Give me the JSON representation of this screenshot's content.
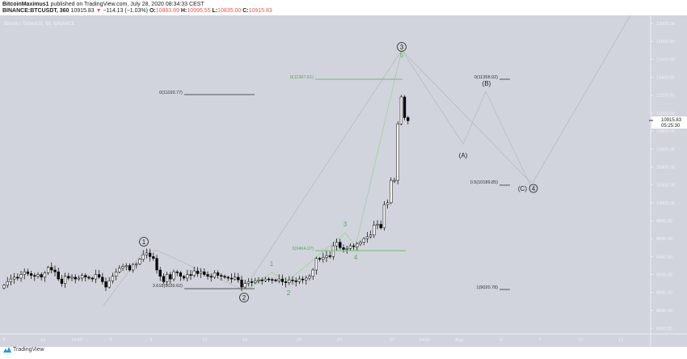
{
  "header": {
    "publisher": "BitcoinMaximus1",
    "published_text": "published on TradingView.com, July 28, 2020 08:34:33 CEST",
    "symbol": "BINANCE:BTCUSDT, 360",
    "last": "10915.83",
    "change": "−114.13 (−1.03%)",
    "o_label": "O:",
    "o": "10883.89",
    "h_label": "H:",
    "h": "10995.55",
    "l_label": "L:",
    "l": "10835.00",
    "c_label": "C:",
    "c": "10915.83"
  },
  "chart": {
    "legend": "Bitcoin / TetherUS, 6h, BINANCE",
    "current_price": "10915.83",
    "countdown": "05:25:30",
    "price_ticks": [
      "12000.00",
      "11800.00",
      "11600.00",
      "11400.00",
      "11200.00",
      "11000.00",
      "10800.00",
      "10600.00",
      "10400.00",
      "10200.00",
      "10000.00",
      "9800.00",
      "9600.00",
      "9400.00",
      "9200.00",
      "9000.00",
      "8800.00",
      "8600.00"
    ],
    "time_ticks": [
      "8",
      "Jul",
      "14:00",
      "6",
      "9",
      "13",
      "16",
      "20",
      "23",
      "27",
      "14:00",
      "Aug",
      "4",
      "7",
      "10",
      "13"
    ],
    "colors": {
      "background": "#d1d4dc",
      "up": "#ffffff",
      "down": "#000000",
      "wave_green": "#4caf50",
      "wave_grey": "#b7bac2",
      "price_box": "#ffffff"
    },
    "closes": [
      9080,
      9120,
      9150,
      9170,
      9160,
      9200,
      9230,
      9210,
      9190,
      9180,
      9200,
      9170,
      9220,
      9280,
      9250,
      9230,
      9150,
      9100,
      9180,
      9160,
      9170,
      9150,
      9160,
      9190,
      9170,
      9160,
      9150,
      9200,
      9170,
      9120,
      9060,
      9130,
      9180,
      9230,
      9270,
      9290,
      9300,
      9250,
      9310,
      9320,
      9370,
      9420,
      9440,
      9400,
      9380,
      9250,
      9180,
      9120,
      9200,
      9150,
      9230,
      9220,
      9180,
      9160,
      9200,
      9190,
      9240,
      9210,
      9230,
      9200,
      9180,
      9170,
      9220,
      9190,
      9180,
      9170,
      9160,
      9150,
      9170,
      9140,
      9060,
      9100,
      9120,
      9110,
      9130,
      9140,
      9130,
      9150,
      9145,
      9140,
      9130,
      9150,
      9120,
      9110,
      9140,
      9130,
      9120,
      9150,
      9140,
      9160,
      9180,
      9250,
      9380,
      9370,
      9390,
      9410,
      9400,
      9520,
      9560,
      9500,
      9480,
      9490,
      9520,
      9510,
      9540,
      9560,
      9600,
      9620,
      9640,
      9750,
      9760,
      9720,
      9980,
      10000,
      10250,
      10250,
      10880,
      11180,
      10950,
      10915
    ],
    "wave_labels": {
      "primary": [
        "1",
        "2",
        "3"
      ],
      "minor": [
        "1",
        "2",
        "3",
        "4",
        "5"
      ],
      "correction": [
        "(A)",
        "(B)",
        "(C)",
        "4"
      ]
    },
    "fib_labels": {
      "left_top": "0(11193.77)",
      "left_bottom": "3.618(9039.62)",
      "green_top": "0(11367.61)",
      "green_bottom": "3(9464.07)",
      "right_top": "0(11358.92)",
      "right_mid": "0.5(10189.85)",
      "right_bottom": "1(9020.78)"
    }
  },
  "footer": {
    "brand": "TradingView"
  }
}
